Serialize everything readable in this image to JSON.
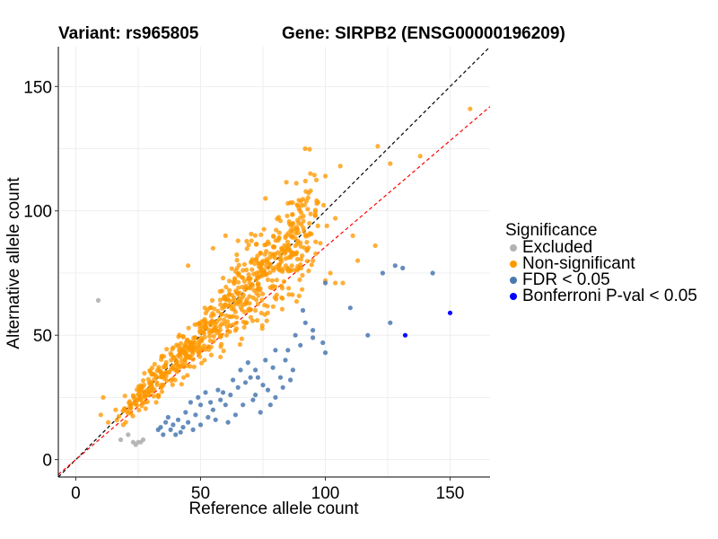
{
  "chart_data": {
    "type": "scatter",
    "title_left": "Variant: rs965805",
    "title_right": "Gene: SIRPB2 (ENSG00000196209)",
    "xlabel": "Reference allele count",
    "ylabel": "Alternative allele count",
    "xlim": [
      -7,
      166
    ],
    "ylim": [
      -7,
      166
    ],
    "xticks": [
      0,
      50,
      100,
      150
    ],
    "yticks": [
      0,
      50,
      100,
      150
    ],
    "reference_lines": [
      {
        "name": "identity",
        "slope": 1.0,
        "intercept": 0,
        "color": "#000000",
        "style": "dashed"
      },
      {
        "name": "expected-ratio",
        "slope": 0.855,
        "intercept": 0,
        "color": "#ff0000",
        "style": "dashed"
      }
    ],
    "legend": {
      "title": "Significance",
      "entries": [
        {
          "label": "Excluded",
          "color": "#b3b3b3"
        },
        {
          "label": "Non-significant",
          "color": "#ff9900"
        },
        {
          "label": "FDR < 0.05",
          "color": "#4a78b0"
        },
        {
          "label": "Bonferroni P-val < 0.05",
          "color": "#0000ff"
        }
      ]
    },
    "series": [
      {
        "name": "Excluded",
        "color": "#b3b3b3",
        "points": [
          [
            9,
            64
          ],
          [
            18,
            8
          ],
          [
            23,
            7
          ],
          [
            24,
            6
          ],
          [
            25,
            7
          ],
          [
            26,
            7
          ],
          [
            27,
            8
          ],
          [
            21,
            10
          ]
        ]
      },
      {
        "name": "Non-significant",
        "color": "#ff9900",
        "n_generated": 700,
        "points": [
          [
            158,
            141
          ],
          [
            121,
            126
          ],
          [
            138,
            122
          ],
          [
            126,
            119
          ],
          [
            106,
            118
          ],
          [
            100,
            114
          ],
          [
            94,
            115
          ],
          [
            92,
            112
          ],
          [
            85,
            103
          ],
          [
            76,
            105
          ],
          [
            82,
            96
          ],
          [
            97,
            94
          ],
          [
            104,
            97
          ],
          [
            111,
            90
          ],
          [
            98,
            87
          ],
          [
            120,
            86
          ],
          [
            95,
            80
          ],
          [
            113,
            80
          ],
          [
            85,
            77
          ],
          [
            88,
            86
          ],
          [
            102,
            75
          ],
          [
            100,
            72
          ],
          [
            104,
            71
          ],
          [
            107,
            71
          ],
          [
            11,
            25
          ],
          [
            10,
            18
          ],
          [
            13,
            15
          ],
          [
            19,
            14
          ],
          [
            20,
            15
          ],
          [
            16,
            20
          ],
          [
            22,
            22
          ],
          [
            60,
            90
          ],
          [
            65,
            88
          ],
          [
            55,
            85
          ],
          [
            45,
            78
          ]
        ]
      },
      {
        "name": "FDR < 0.05",
        "color": "#4a78b0",
        "points": [
          [
            128,
            78
          ],
          [
            131,
            77
          ],
          [
            143,
            75
          ],
          [
            123,
            75
          ],
          [
            100,
            71
          ],
          [
            110,
            61
          ],
          [
            126,
            55
          ],
          [
            117,
            50
          ],
          [
            91,
            60
          ],
          [
            92,
            55
          ],
          [
            95,
            52
          ],
          [
            99,
            47
          ],
          [
            100,
            43
          ],
          [
            95,
            49
          ],
          [
            88,
            50
          ],
          [
            90,
            46
          ],
          [
            85,
            44
          ],
          [
            80,
            44
          ],
          [
            76,
            40
          ],
          [
            72,
            36
          ],
          [
            70,
            33
          ],
          [
            68,
            31
          ],
          [
            75,
            30
          ],
          [
            80,
            25
          ],
          [
            78,
            22
          ],
          [
            74,
            19
          ],
          [
            72,
            26
          ],
          [
            65,
            29
          ],
          [
            62,
            26
          ],
          [
            60,
            22
          ],
          [
            58,
            24
          ],
          [
            55,
            20
          ],
          [
            53,
            17
          ],
          [
            50,
            22
          ],
          [
            48,
            18
          ],
          [
            45,
            15
          ],
          [
            43,
            13
          ],
          [
            42,
            11
          ],
          [
            40,
            10
          ],
          [
            38,
            12
          ],
          [
            35,
            10
          ],
          [
            33,
            12
          ],
          [
            46,
            23
          ],
          [
            52,
            27
          ],
          [
            57,
            28
          ],
          [
            63,
            32
          ],
          [
            66,
            36
          ],
          [
            69,
            39
          ],
          [
            84,
            40
          ],
          [
            87,
            36
          ],
          [
            82,
            33
          ],
          [
            77,
            28
          ],
          [
            71,
            24
          ],
          [
            64,
            18
          ],
          [
            61,
            15
          ],
          [
            56,
            16
          ],
          [
            50,
            14
          ],
          [
            47,
            12
          ],
          [
            44,
            19
          ],
          [
            41,
            16
          ],
          [
            39,
            14
          ],
          [
            37,
            17
          ],
          [
            34,
            13
          ],
          [
            36,
            15
          ],
          [
            49,
            25
          ],
          [
            54,
            23
          ],
          [
            59,
            27
          ],
          [
            67,
            22
          ],
          [
            73,
            33
          ],
          [
            79,
            37
          ],
          [
            83,
            29
          ],
          [
            86,
            32
          ]
        ]
      },
      {
        "name": "Bonferroni P-val < 0.05",
        "color": "#0000ff",
        "points": [
          [
            150,
            59
          ],
          [
            132,
            50
          ]
        ]
      }
    ]
  }
}
